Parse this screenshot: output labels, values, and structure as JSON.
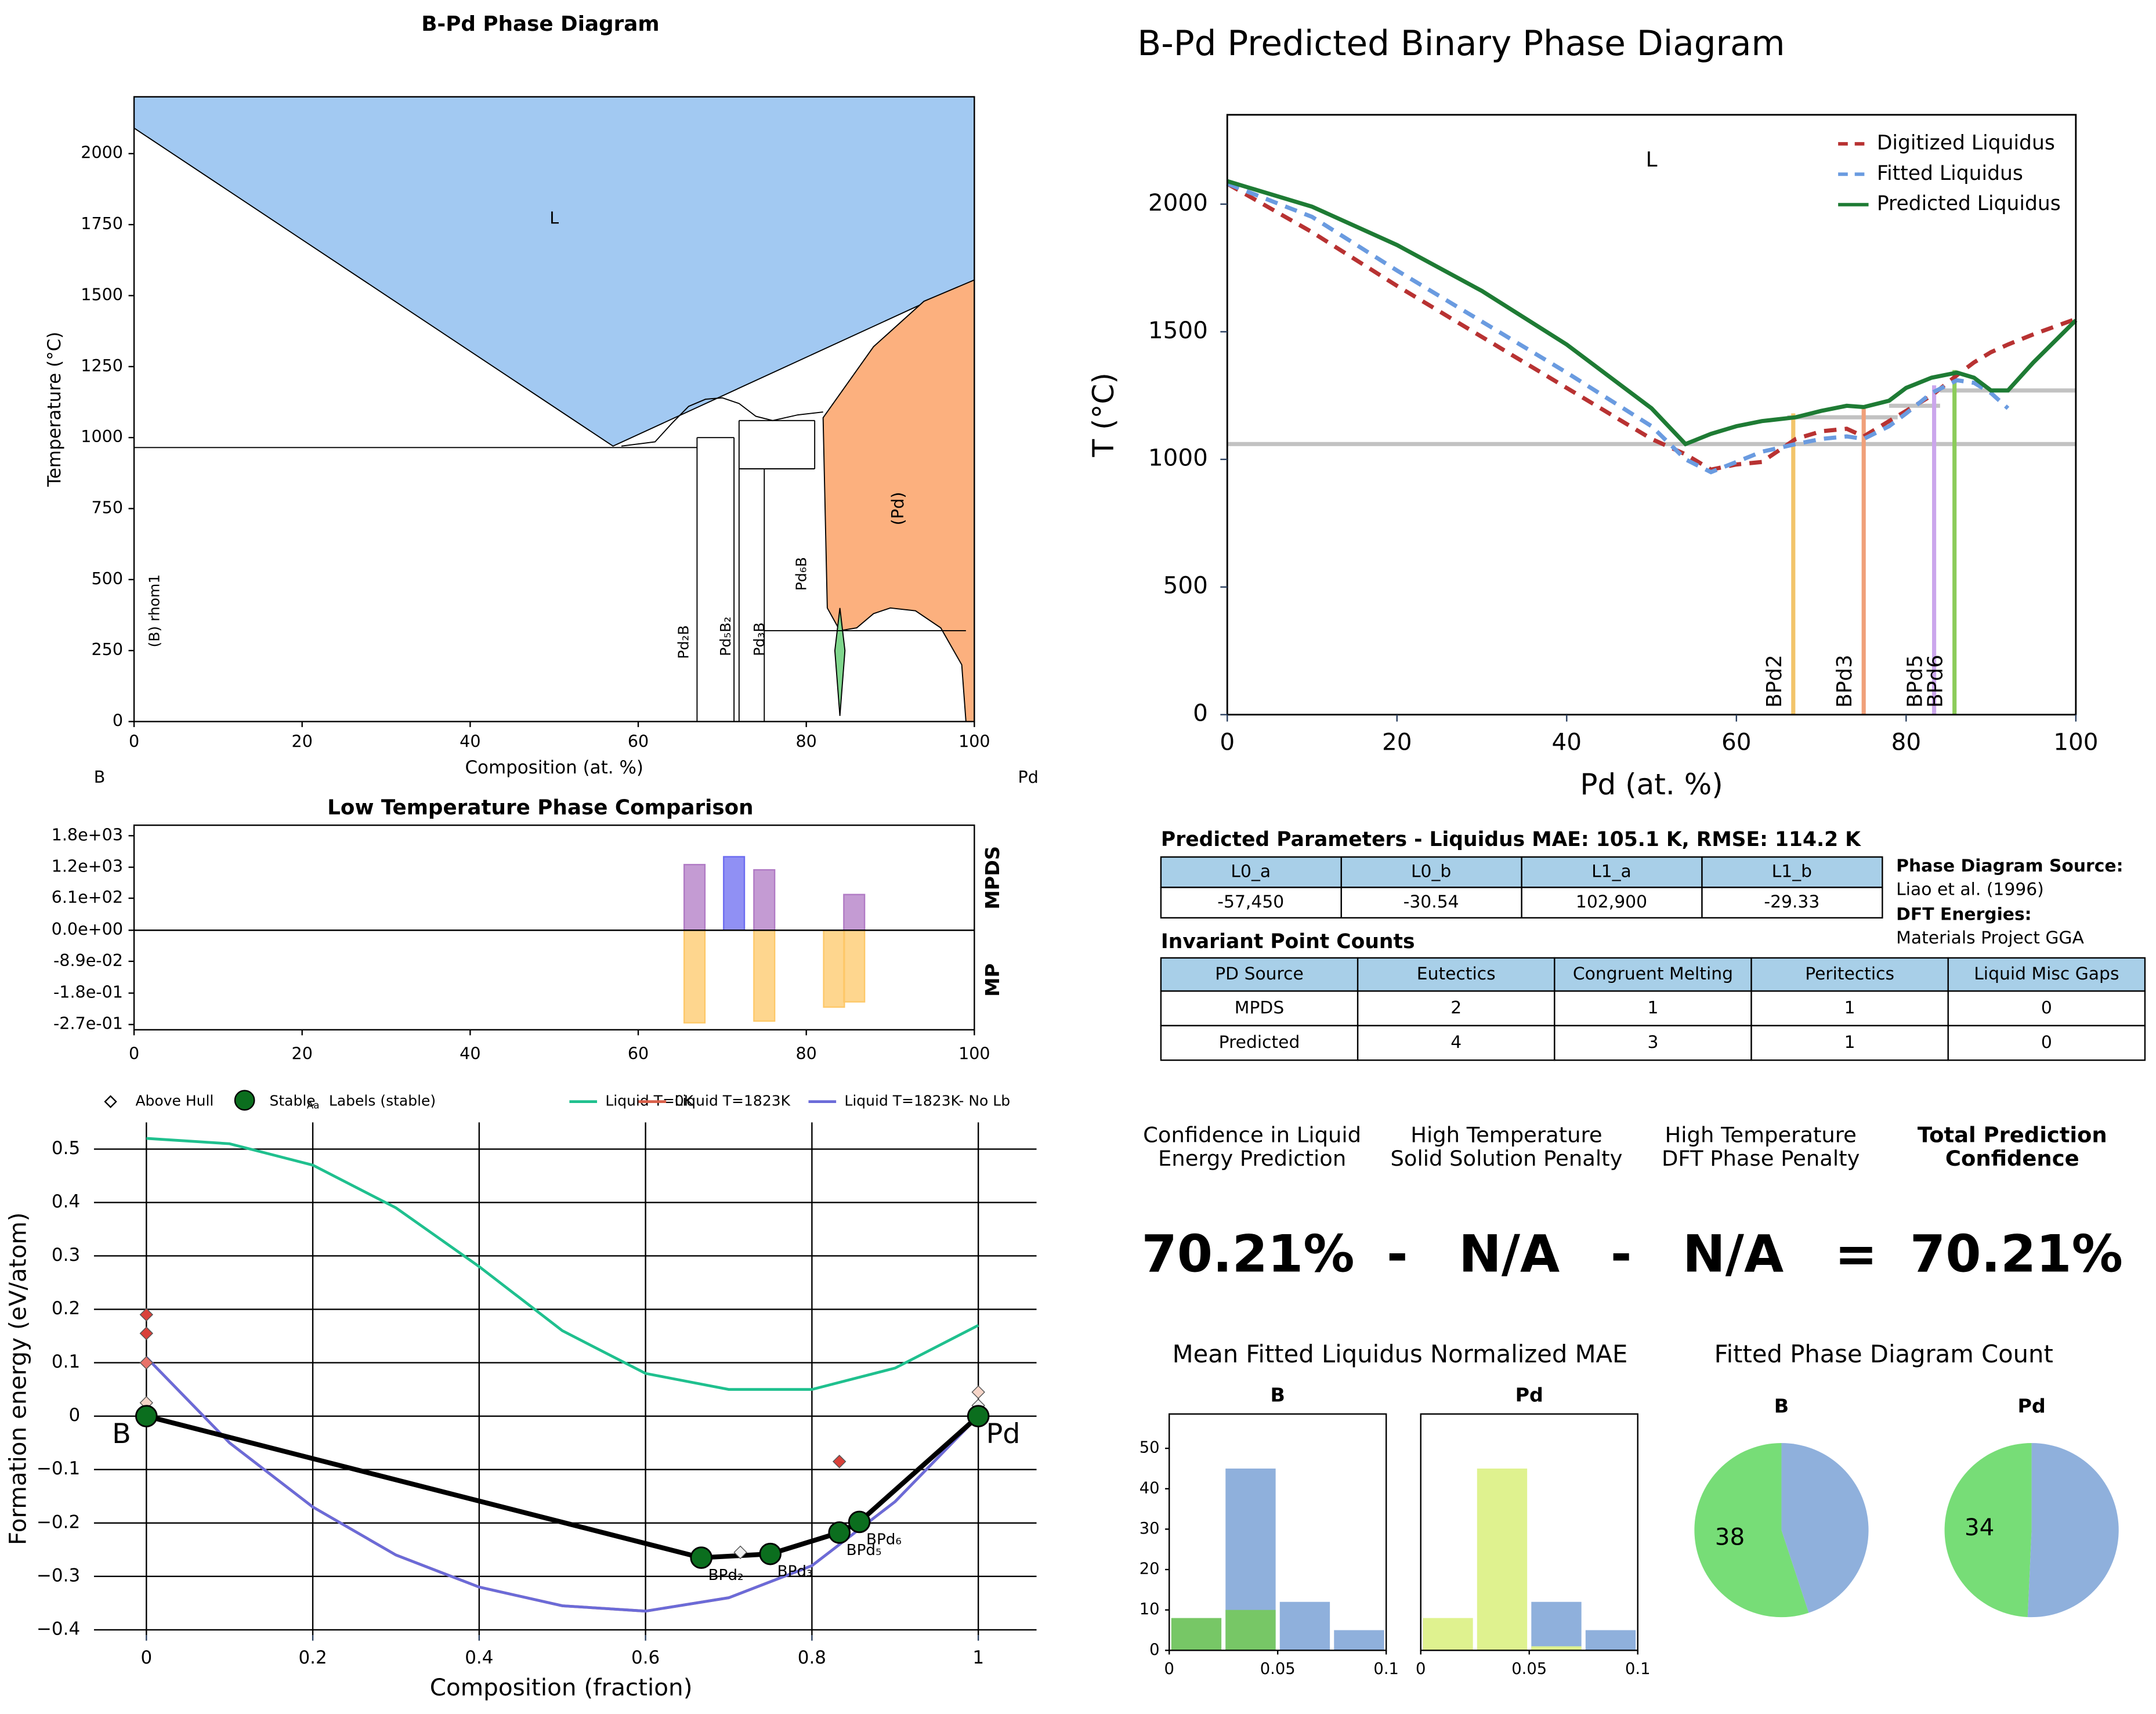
{
  "chart_data": [
    {
      "type": "phase_diagram",
      "title": "B-Pd Phase Diagram",
      "x_label": "Composition (at. %)",
      "y_label": "Temperature (°C)",
      "end_labels": [
        "B",
        "Pd"
      ],
      "xlim": [
        0,
        100
      ],
      "ylim": [
        0,
        2200
      ],
      "xticks": [
        0,
        20,
        40,
        60,
        80,
        100
      ],
      "yticks": [
        0,
        250,
        500,
        750,
        1000,
        1250,
        1500,
        1750,
        2000
      ],
      "regions": [
        {
          "name": "L",
          "color": "#a2c9f2",
          "x": [
            0,
            100,
            100,
            57,
            0
          ],
          "y": [
            2200,
            2200,
            1555,
            970,
            2090
          ],
          "label_x": 50,
          "label_y": 1770,
          "rotate": false
        },
        {
          "name": "(Pd)",
          "color": "#fcb07e",
          "x": [
            100,
            94,
            88,
            82,
            82.5,
            84,
            86,
            88,
            90,
            93,
            96,
            98.5,
            99,
            100
          ],
          "y": [
            1555,
            1480,
            1320,
            1070,
            400,
            320,
            330,
            380,
            400,
            390,
            330,
            200,
            0,
            0
          ],
          "label_x": 91,
          "label_y": 750,
          "rotate": true
        },
        {
          "color": "#7fd68c",
          "x": [
            84,
            83.4,
            84,
            84.6
          ],
          "y": [
            400,
            250,
            20,
            250
          ]
        }
      ],
      "lines": [
        {
          "x": [
            0,
            67
          ],
          "y": [
            965,
            965
          ]
        },
        {
          "x": [
            58,
            62,
            64,
            66,
            68,
            70,
            72,
            74,
            76,
            79,
            82
          ],
          "y": [
            970,
            985,
            1050,
            1110,
            1135,
            1140,
            1120,
            1075,
            1060,
            1080,
            1090
          ]
        },
        {
          "x": [
            67,
            67
          ],
          "y": [
            0,
            1000
          ]
        },
        {
          "x": [
            67,
            71.4
          ],
          "y": [
            1000,
            1000
          ]
        },
        {
          "x": [
            71.4,
            71.4
          ],
          "y": [
            0,
            1000
          ]
        },
        {
          "x": [
            72,
            72
          ],
          "y": [
            0,
            1060
          ]
        },
        {
          "x": [
            72,
            81
          ],
          "y": [
            1060,
            1060
          ]
        },
        {
          "x": [
            72,
            81
          ],
          "y": [
            890,
            890
          ]
        },
        {
          "x": [
            81,
            81
          ],
          "y": [
            890,
            1060
          ]
        },
        {
          "x": [
            75,
            75
          ],
          "y": [
            0,
            890
          ]
        },
        {
          "x": [
            75,
            99
          ],
          "y": [
            320,
            320
          ]
        }
      ],
      "phases": [
        {
          "name": "(B) rhom1",
          "x": 2.5,
          "y": 390
        },
        {
          "name": "Pd₂B",
          "x": 65.5,
          "y": 280
        },
        {
          "name": "Pd₅B₂",
          "x": 70.5,
          "y": 300
        },
        {
          "name": "Pd₃B",
          "x": 74.5,
          "y": 290
        },
        {
          "name": "Pd₆B",
          "x": 79.5,
          "y": 520
        }
      ]
    },
    {
      "type": "line",
      "title": "B-Pd Predicted Binary Phase Diagram",
      "x_label": "Pd (at. %)",
      "y_label": "T (°C)",
      "annotation": {
        "text": "L",
        "x": 50,
        "y": 2170
      },
      "xlim": [
        0,
        100
      ],
      "ylim": [
        0,
        2350
      ],
      "xticks": [
        0,
        20,
        40,
        60,
        80,
        100
      ],
      "yticks": [
        0,
        500,
        1000,
        1500,
        2000
      ],
      "legend": "upper right",
      "x": [
        0,
        10,
        20,
        30,
        40,
        50,
        54,
        57,
        60,
        63,
        67,
        70,
        73,
        75,
        78,
        80,
        83,
        86,
        88,
        90,
        92,
        95,
        100
      ],
      "series": [
        {
          "name": "Digitized Liquidus",
          "color": "#b83232",
          "dashed": true,
          "values": [
            2080,
            1890,
            1680,
            1480,
            1280,
            1080,
            1020,
            960,
            980,
            990,
            1080,
            1110,
            1120,
            1090,
            1150,
            1190,
            1250,
            1330,
            1380,
            1420,
            1450,
            1490,
            1550
          ]
        },
        {
          "name": "Fitted Liquidus",
          "color": "#6a9be0",
          "dashed": true,
          "values": [
            2080,
            1950,
            1740,
            1540,
            1340,
            1130,
            1000,
            950,
            990,
            1030,
            1060,
            1080,
            1090,
            1080,
            1130,
            1180,
            1260,
            1310,
            1300,
            1260,
            1200,
            null,
            null
          ]
        },
        {
          "name": "Predicted Liquidus",
          "color": "#1e7b34",
          "dashed": false,
          "values": [
            2090,
            1990,
            1840,
            1660,
            1450,
            1200,
            1060,
            1100,
            1130,
            1150,
            1165,
            1190,
            1210,
            1205,
            1230,
            1280,
            1320,
            1340,
            1320,
            1270,
            1270,
            1380,
            1545
          ]
        }
      ],
      "reference_lines": {
        "color": "#c2c2c2",
        "segments": [
          {
            "x": [
              0,
              100
            ],
            "y": [
              1060,
              1060
            ]
          },
          {
            "x": [
              66,
              79
            ],
            "y": [
              1165,
              1165
            ]
          },
          {
            "x": [
              78,
              84
            ],
            "y": [
              1210,
              1210
            ]
          },
          {
            "x": [
              84,
              100
            ],
            "y": [
              1270,
              1270
            ]
          }
        ]
      },
      "phase_lines": [
        {
          "name": "BPd2",
          "x": 66.7,
          "top": 1180,
          "color": "#f2c46a"
        },
        {
          "name": "BPd3",
          "x": 75,
          "top": 1210,
          "color": "#f0a07a"
        },
        {
          "name": "BPd5",
          "x": 83.3,
          "top": 1290,
          "color": "#cba6ec"
        },
        {
          "name": "BPd6",
          "x": 85.7,
          "top": 1350,
          "color": "#8ccc5a"
        }
      ]
    },
    {
      "type": "mirrored_bar",
      "title": "Low Temperature Phase Comparison",
      "xlim": [
        0,
        100
      ],
      "xticks": [
        0,
        20,
        40,
        60,
        80,
        100
      ],
      "ylim": [
        0,
        2000
      ],
      "yticks": [
        {
          "value": 1800,
          "label": "1.8e+03"
        },
        {
          "value": 1200,
          "label": "1.2e+03"
        },
        {
          "value": 610,
          "label": "6.1e+02"
        },
        {
          "value": 0,
          "label": "0.0e+00"
        }
      ],
      "y2lim": [
        -0.285,
        0
      ],
      "y2ticks": [
        {
          "value": -0.089,
          "label": "-8.9e-02"
        },
        {
          "value": -0.18,
          "label": "-1.8e-01"
        },
        {
          "value": -0.27,
          "label": "-2.7e-01"
        }
      ],
      "series": [
        {
          "name": "MPDS",
          "x": [
            66.7,
            71.4,
            75,
            85.7
          ],
          "values": [
            1250,
            1400,
            1150,
            680
          ],
          "colors": [
            "#b07ac4",
            "#6b6bf0",
            "#b07ac4",
            "#b07ac4"
          ]
        },
        {
          "name": "MP",
          "axis": "y2",
          "x": [
            66.7,
            75,
            83.3,
            85.7
          ],
          "values": [
            -0.265,
            -0.26,
            -0.22,
            -0.205
          ],
          "color": "#fdc868"
        }
      ]
    },
    {
      "type": "convex_hull",
      "x_label": "Composition (fraction)",
      "y_label": "Formation energy (eV/atom)",
      "xlim": [
        -0.063,
        1.07
      ],
      "ylim": [
        -0.41,
        0.55
      ],
      "grid": true,
      "xticks": [
        0,
        0.2,
        0.4,
        0.6,
        0.8,
        1
      ],
      "yticks": [
        {
          "value": -0.4,
          "label": "−0.4"
        },
        {
          "value": -0.3,
          "label": "−0.3"
        },
        {
          "value": -0.2,
          "label": "−0.2"
        },
        {
          "value": -0.1,
          "label": "−0.1"
        },
        0,
        0.1,
        0.2,
        0.3,
        0.4,
        0.5
      ],
      "above_hull": {
        "name": "Above Hull",
        "x": [
          0,
          0,
          0,
          0,
          0.714,
          0.833,
          0.857,
          1,
          1
        ],
        "values": [
          0.19,
          0.155,
          0.1,
          0.025,
          -0.255,
          -0.085,
          -0.19,
          0.045,
          0.02
        ],
        "colors": [
          "#d9413a",
          "#d9413a",
          "#e8736a",
          "#f6d5c8",
          "#f0f0f0",
          "#d9413a",
          "#f0f0f0",
          "#f6d5c8",
          "#f0f0f0"
        ]
      },
      "stable": {
        "name": "Stable",
        "color": "#0b6e1e",
        "x": [
          0,
          0.667,
          0.75,
          0.833,
          0.857,
          1
        ],
        "values": [
          0,
          -0.265,
          -0.258,
          -0.218,
          -0.198,
          0
        ],
        "labels": [
          "B",
          "BPd₂",
          "BPd₃",
          "BPd₅",
          "BPd₆",
          "Pd"
        ],
        "labels_name": "Labels (stable)",
        "label_icon": "Aa"
      },
      "series": [
        {
          "name": "Liquid T=0K",
          "color": "#1fc08e",
          "x": [
            0,
            0.1,
            0.2,
            0.3,
            0.4,
            0.5,
            0.6,
            0.7,
            0.8,
            0.9,
            1
          ],
          "values": [
            0.52,
            0.51,
            0.47,
            0.39,
            0.28,
            0.16,
            0.08,
            0.05,
            0.05,
            0.09,
            0.17
          ]
        },
        {
          "name": "Liquid T=1823K",
          "color": "#d9604a",
          "x": [
            0,
            0.1,
            0.2,
            0.3,
            0.4,
            0.5,
            0.6,
            0.7,
            0.8,
            0.9,
            1
          ],
          "values": [
            0.11,
            -0.05,
            -0.17,
            -0.26,
            -0.32,
            -0.355,
            -0.365,
            -0.34,
            -0.28,
            -0.16,
            0.0
          ]
        },
        {
          "name": "Liquid T=1823K- No Lb",
          "color": "#6b6bd8",
          "x": [
            0,
            0.1,
            0.2,
            0.3,
            0.4,
            0.5,
            0.6,
            0.7,
            0.8,
            0.9,
            1
          ],
          "values": [
            0.11,
            -0.05,
            -0.17,
            -0.26,
            -0.32,
            -0.355,
            -0.365,
            -0.34,
            -0.28,
            -0.16,
            0.0
          ]
        }
      ]
    },
    {
      "type": "histogram",
      "title": "B",
      "bins": [
        0,
        0.025,
        0.05,
        0.075,
        0.1
      ],
      "xlim": [
        0,
        0.1
      ],
      "xticks": [
        0,
        0.05,
        0.1
      ],
      "ylim": [
        0,
        58.5
      ],
      "yticks": [
        0,
        10,
        20,
        30,
        40,
        50
      ],
      "series": [
        {
          "color": "#8fb0dc",
          "values": [
            0,
            45,
            12,
            5
          ]
        },
        {
          "color": "#77c766",
          "values": [
            8,
            10,
            0,
            0
          ]
        }
      ]
    },
    {
      "type": "histogram",
      "title": "Pd",
      "bins": [
        0,
        0.025,
        0.05,
        0.075,
        0.1
      ],
      "xlim": [
        0,
        0.1
      ],
      "xticks": [
        0,
        0.05,
        0.1
      ],
      "ylim": [
        0,
        58.5
      ],
      "series": [
        {
          "color": "#8fb0dc",
          "values": [
            0,
            0,
            12,
            5
          ]
        },
        {
          "color": "#dff28f",
          "values": [
            8,
            45,
            1,
            0
          ]
        }
      ]
    },
    {
      "type": "pie",
      "title": "B",
      "values": [
        38,
        31
      ],
      "colors": [
        "#77dd77",
        "#8fb0dc"
      ],
      "show_labels": [
        true,
        false
      ]
    },
    {
      "type": "pie",
      "title": "Pd",
      "values": [
        34,
        35
      ],
      "colors": [
        "#77dd77",
        "#8fb0dc"
      ],
      "show_labels": [
        true,
        false
      ]
    }
  ],
  "parameters": {
    "title": "Predicted Parameters - Liquidus MAE: 105.1 K, RMSE: 114.2 K",
    "headers": [
      "L0_a",
      "L0_b",
      "L1_a",
      "L1_b"
    ],
    "row": [
      "-57,450",
      "-30.54",
      "102,900",
      "-29.33"
    ]
  },
  "source": {
    "pd_label": "Phase Diagram Source:",
    "pd_value": "Liao et al. (1996)",
    "dft_label": "DFT Energies:",
    "dft_value": "Materials Project GGA"
  },
  "invariants": {
    "title": "Invariant Point Counts",
    "headers": [
      "PD Source",
      "Eutectics",
      "Congruent Melting",
      "Peritectics",
      "Liquid Misc Gaps"
    ],
    "rows": [
      [
        "MPDS",
        "2",
        "1",
        "1",
        "0"
      ],
      [
        "Predicted",
        "4",
        "3",
        "1",
        "0"
      ]
    ]
  },
  "confidence": {
    "headers": [
      [
        "Confidence in Liquid",
        "Energy Prediction"
      ],
      [
        "High Temperature",
        "Solid Solution Penalty"
      ],
      [
        "High Temperature",
        "DFT Phase Penalty"
      ],
      [
        "Total Prediction",
        "Confidence"
      ]
    ],
    "values": [
      "70.21%",
      "-",
      "N/A",
      "-",
      "N/A",
      "=",
      "70.21%"
    ]
  },
  "histogram_title": "Mean Fitted Liquidus Normalized MAE",
  "pie_title": "Fitted Phase Diagram Count"
}
